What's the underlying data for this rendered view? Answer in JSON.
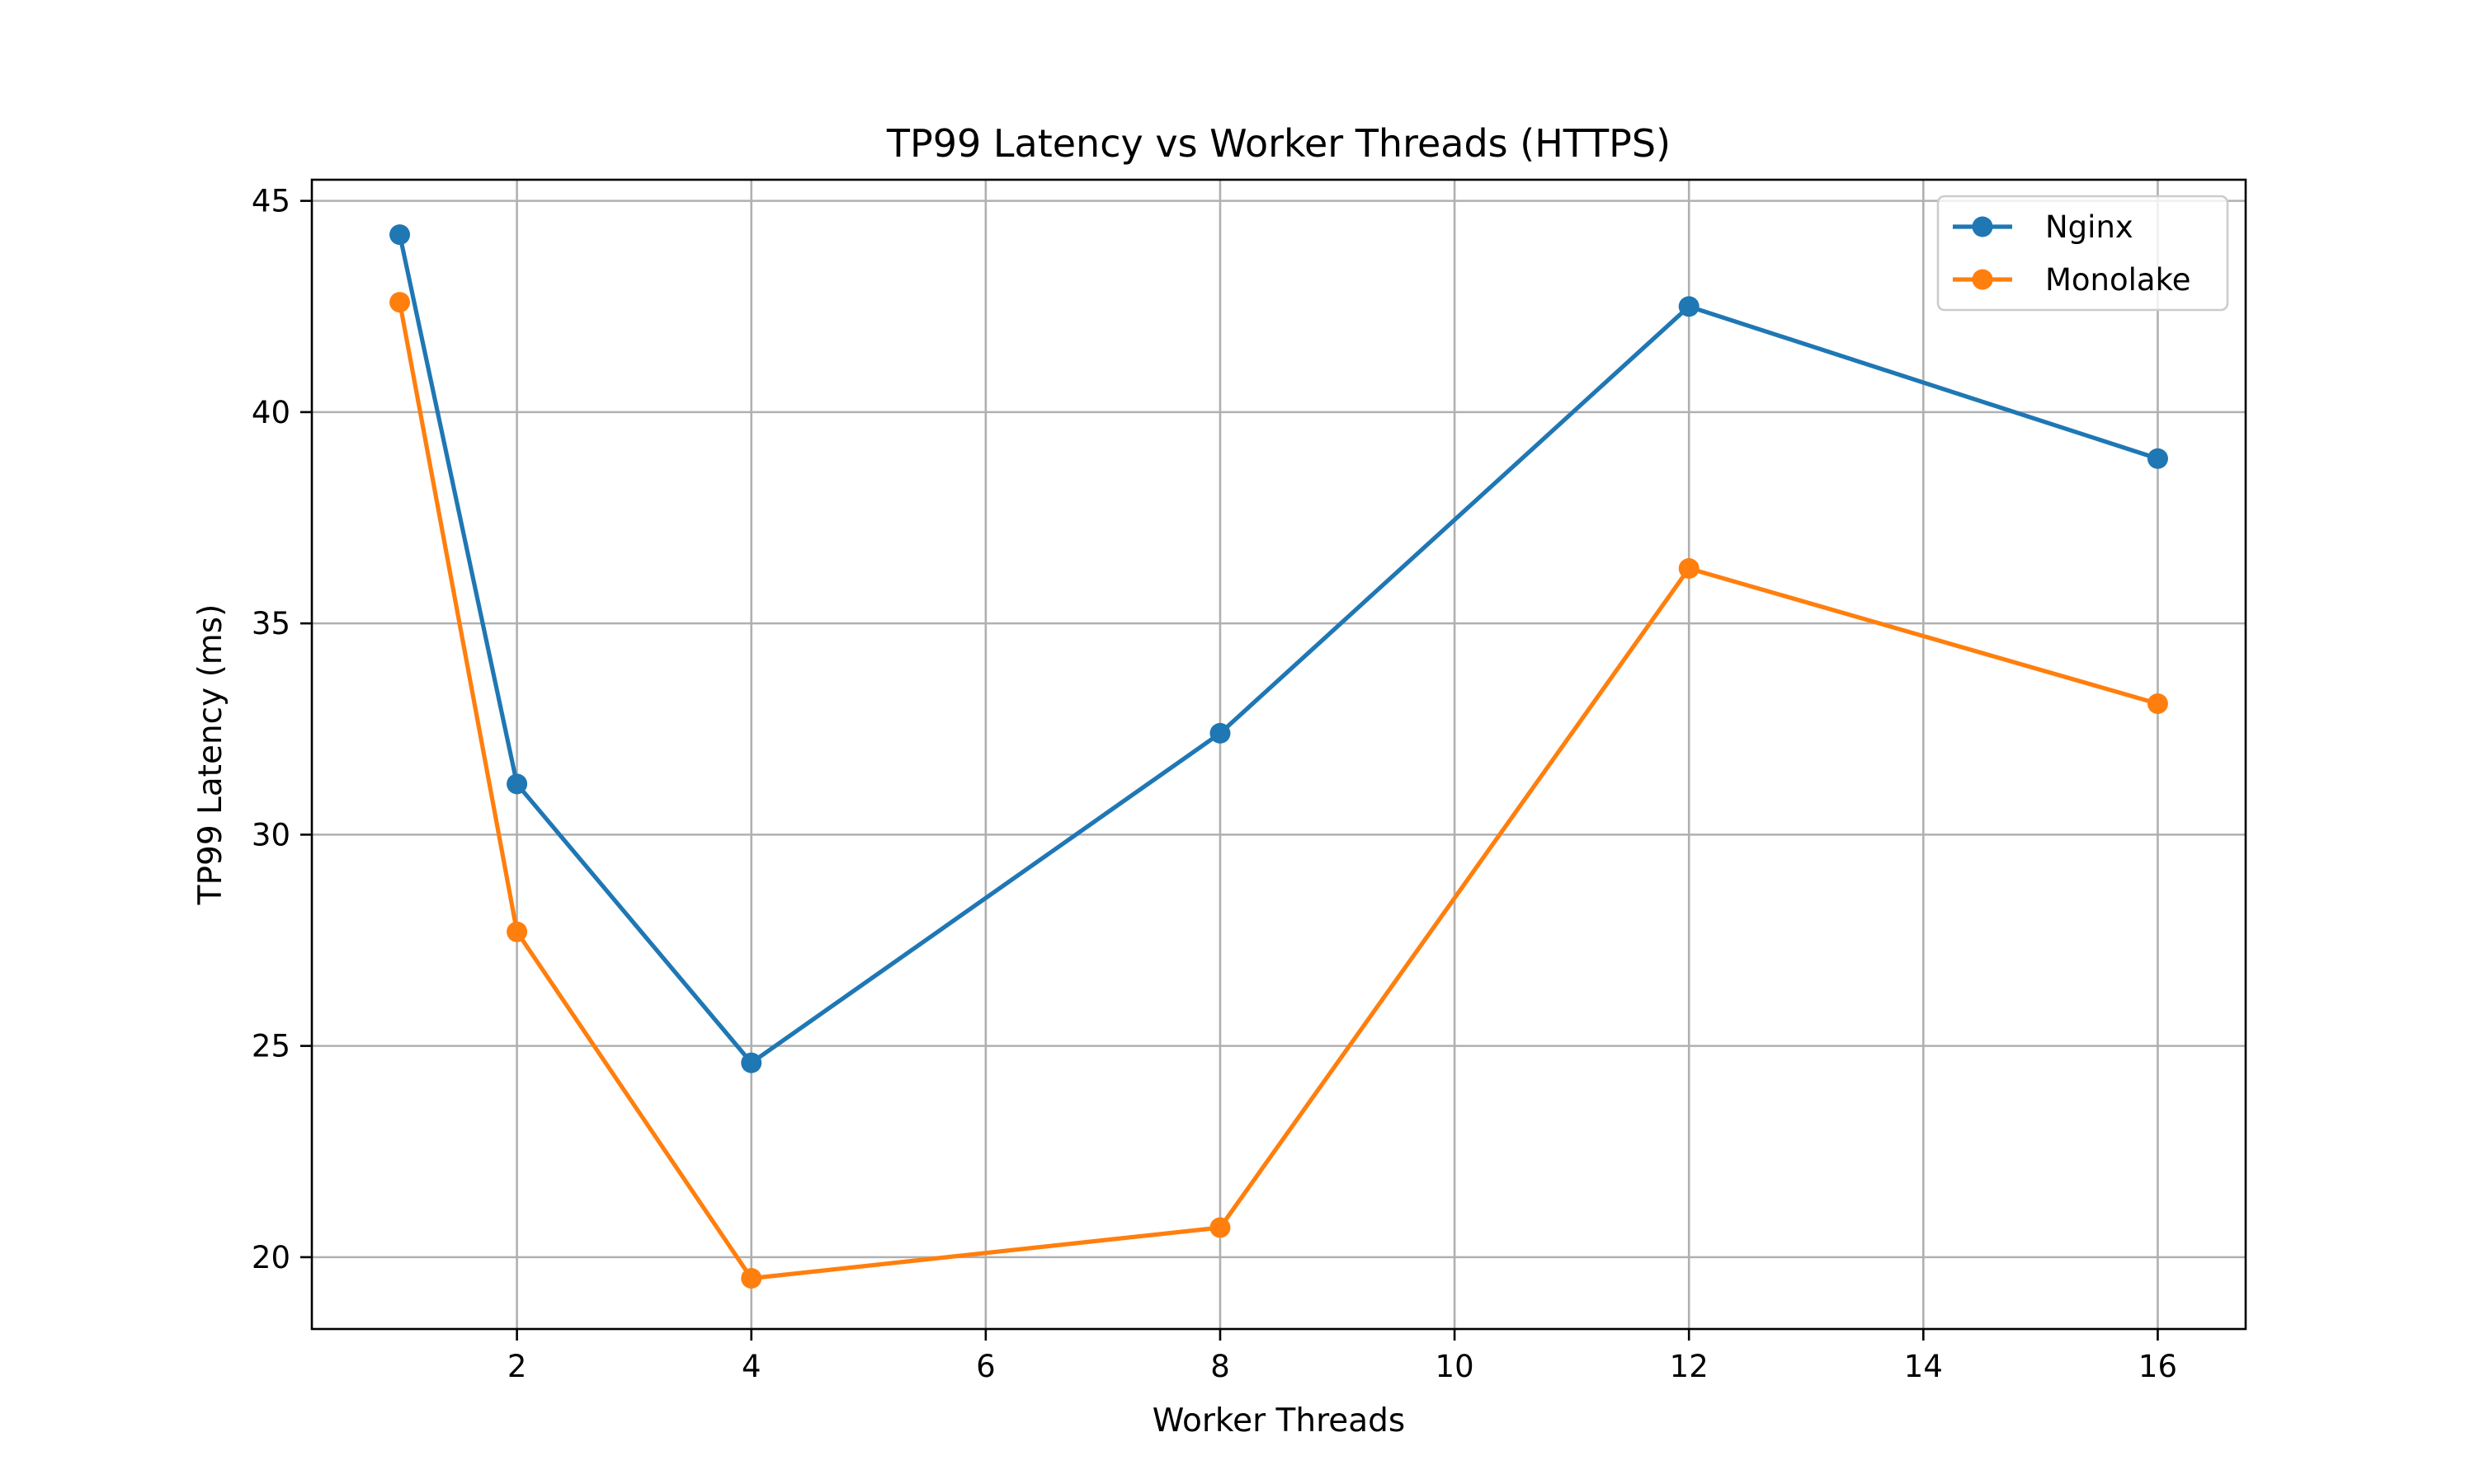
{
  "chart_data": {
    "type": "line",
    "title": "TP99 Latency vs Worker Threads (HTTPS)",
    "xlabel": "Worker Threads",
    "ylabel": "TP99 Latency (ms)",
    "xlim": [
      0.25,
      16.75
    ],
    "ylim": [
      18.3,
      45.5
    ],
    "xticks": [
      2,
      4,
      6,
      8,
      10,
      12,
      14,
      16
    ],
    "yticks": [
      20,
      25,
      30,
      35,
      40,
      45
    ],
    "grid": true,
    "legend_position": "top-right",
    "x": [
      1,
      2,
      4,
      8,
      12,
      16
    ],
    "series": [
      {
        "name": "Nginx",
        "color": "#1f77b4",
        "values": [
          44.2,
          31.2,
          24.6,
          32.4,
          42.5,
          38.9
        ]
      },
      {
        "name": "Monolake",
        "color": "#ff7f0e",
        "values": [
          42.6,
          27.7,
          19.5,
          20.7,
          36.3,
          33.1
        ]
      }
    ]
  }
}
